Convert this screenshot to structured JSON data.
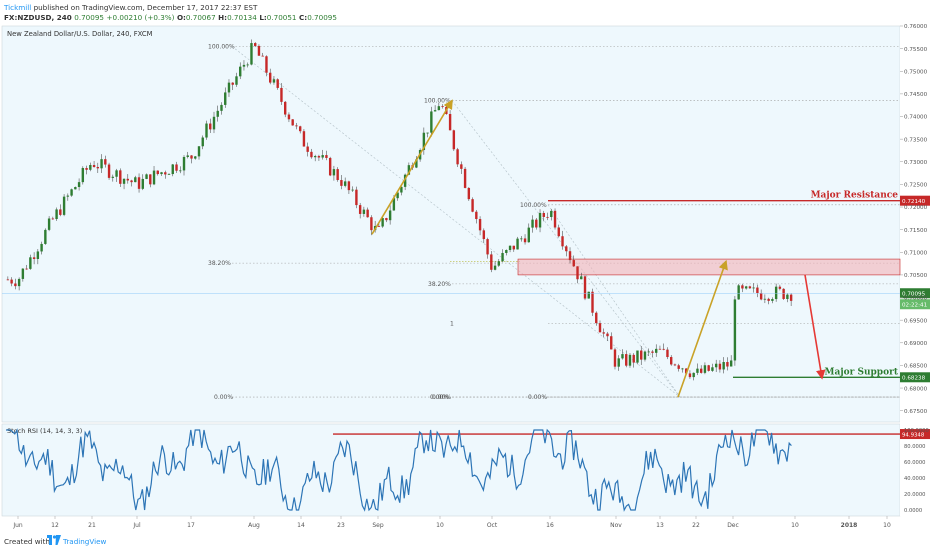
{
  "header": {
    "publisher_user": "Tickmill",
    "publisher_text": " published on TradingView.com, December 17, 2017 22:37 EST",
    "symbol_text": "FX:NZDUSD, 240",
    "ohlc": {
      "o_label": "O:",
      "o": "0.70067",
      "h_label": "H:",
      "h": "0.70134",
      "l_label": "L:",
      "l": "0.70051",
      "c_label": "C:",
      "c": "0.70095",
      "last": "0.70095",
      "change": "+0.00210 (+0.3%)"
    }
  },
  "chart_title": "New Zealand Dollar/U.S. Dollar, 240, FXCM",
  "footer": {
    "created_text": "Created with",
    "brand": "TradingView"
  },
  "chart_data": {
    "type": "candlestick",
    "symbol": "NZDUSD",
    "timeframe": "240",
    "x_axis_labels": [
      "Jun",
      "12",
      "21",
      "Jul",
      "17",
      "Aug",
      "14",
      "23",
      "Sep",
      "10",
      "Oct",
      "16",
      "Nov",
      "13",
      "22",
      "Dec",
      "10",
      "2018",
      "10"
    ],
    "price_axis": {
      "ylim": [
        0.6725,
        0.76
      ],
      "ticks": [
        "0.76000",
        "0.75500",
        "0.75000",
        "0.74500",
        "0.74000",
        "0.73500",
        "0.73000",
        "0.72500",
        "0.72000",
        "0.71500",
        "0.71000",
        "0.70500",
        "0.70000",
        "0.69500",
        "0.69000",
        "0.68500",
        "0.68000",
        "0.67500"
      ]
    },
    "price_path": [
      {
        "x": "Jun",
        "y": 0.704
      },
      {
        "x": "12",
        "y": 0.718
      },
      {
        "x": "21",
        "y": 0.73
      },
      {
        "x": "Jul",
        "y": 0.725
      },
      {
        "x": "17",
        "y": 0.731
      },
      {
        "x": "Aug",
        "y": 0.7555
      },
      {
        "x": "14",
        "y": 0.735
      },
      {
        "x": "23",
        "y": 0.726
      },
      {
        "x": "Sep",
        "y": 0.714
      },
      {
        "x": "10",
        "y": 0.7435
      },
      {
        "x": "Oct",
        "y": 0.7065
      },
      {
        "x": "16",
        "y": 0.7195
      },
      {
        "x": "Nov",
        "y": 0.6855
      },
      {
        "x": "13",
        "y": 0.688
      },
      {
        "x": "22",
        "y": 0.683
      },
      {
        "x": "Dec",
        "y": 0.6855
      },
      {
        "x": "10",
        "y": 0.701
      }
    ],
    "current_price": {
      "value": 0.70095,
      "label": "0.70095",
      "countdown": "02:22:41"
    },
    "levels": [
      {
        "name": "Major Resistance",
        "value": 0.7214,
        "label": "0.72140",
        "color": "#c62828"
      },
      {
        "name": "Major Support",
        "value": 0.68238,
        "label": "0.68238",
        "color": "#2e7d32"
      }
    ],
    "zones": [
      {
        "top": 0.7085,
        "bottom": 0.705,
        "color": "#f3b3b8"
      }
    ],
    "fib_labels": [
      "100.00%",
      "38.20%",
      "0.00%",
      "100.00%",
      "38.20%",
      "0.00%",
      "100.00%",
      "1",
      "0.00%",
      "0.00%"
    ],
    "annotations": [
      "Major Resistance",
      "Major Support"
    ],
    "stoch": {
      "label": "Stoch RSI (14, 14, 3, 3)",
      "ylim": [
        0,
        100
      ],
      "ticks": [
        "100.0000",
        "80.0000",
        "60.0000",
        "40.0000",
        "20.0000",
        "0.0000"
      ],
      "level": {
        "value": 94.9348,
        "label": "94.9348"
      },
      "series": [
        {
          "x": "Jun",
          "y": 90
        },
        {
          "x": "12",
          "y": 35
        },
        {
          "x": "21",
          "y": 75
        },
        {
          "x": "Jul",
          "y": 20
        },
        {
          "x": "17",
          "y": 85
        },
        {
          "x": "Aug",
          "y": 55
        },
        {
          "x": "14",
          "y": 10
        },
        {
          "x": "23",
          "y": 70
        },
        {
          "x": "Sep",
          "y": 5
        },
        {
          "x": "10",
          "y": 95
        },
        {
          "x": "Oct",
          "y": 40
        },
        {
          "x": "16",
          "y": 95
        },
        {
          "x": "Nov",
          "y": 5
        },
        {
          "x": "13",
          "y": 60
        },
        {
          "x": "22",
          "y": 15
        },
        {
          "x": "Dec",
          "y": 90
        },
        {
          "x": "10",
          "y": 88
        }
      ]
    }
  },
  "colors": {
    "chart_bg": "#eef8fd",
    "up": "#2e7d32",
    "down": "#c62828",
    "arrow_gold": "#c9a227",
    "arrow_red": "#e53935",
    "stoch_line": "#2d75b6",
    "axis_text": "#555555",
    "fib_line": "#9e9e9e"
  }
}
